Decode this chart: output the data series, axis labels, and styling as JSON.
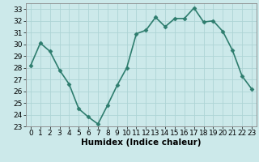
{
  "x": [
    0,
    1,
    2,
    3,
    4,
    5,
    6,
    7,
    8,
    9,
    10,
    11,
    12,
    13,
    14,
    15,
    16,
    17,
    18,
    19,
    20,
    21,
    22,
    23
  ],
  "y": [
    28.2,
    30.1,
    29.4,
    27.8,
    26.6,
    24.5,
    23.8,
    23.2,
    24.8,
    26.5,
    28.0,
    30.9,
    31.2,
    32.3,
    31.5,
    32.2,
    32.2,
    33.1,
    31.9,
    32.0,
    31.1,
    29.5,
    27.3,
    26.2
  ],
  "line_color": "#2e7d6e",
  "marker": "D",
  "marker_size": 2.5,
  "bg_color": "#cce9ea",
  "grid_color": "#aed4d5",
  "xlabel": "Humidex (Indice chaleur)",
  "xlim": [
    -0.5,
    23.5
  ],
  "ylim": [
    23,
    33.5
  ],
  "yticks": [
    23,
    24,
    25,
    26,
    27,
    28,
    29,
    30,
    31,
    32,
    33
  ],
  "xticks": [
    0,
    1,
    2,
    3,
    4,
    5,
    6,
    7,
    8,
    9,
    10,
    11,
    12,
    13,
    14,
    15,
    16,
    17,
    18,
    19,
    20,
    21,
    22,
    23
  ],
  "tick_fontsize": 6.5,
  "xlabel_fontsize": 7.5,
  "line_width": 1.2
}
